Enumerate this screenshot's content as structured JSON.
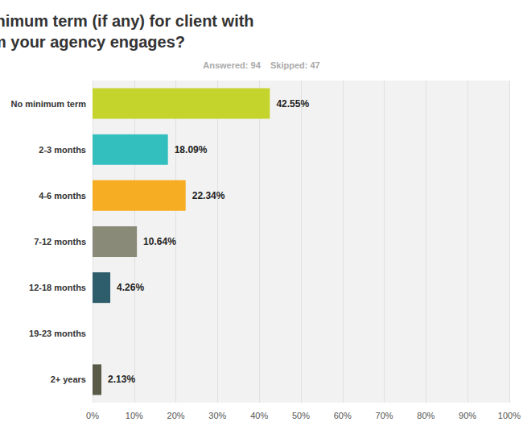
{
  "chart_data": {
    "type": "bar",
    "orientation": "horizontal",
    "title": "What is the minimum term (if any) for client with whom your agency engages?",
    "subtitle": "Answered: 94    Skipped: 47",
    "categories": [
      "No minimum term",
      "2-3 months",
      "4-6 months",
      "7-12 months",
      "12-18 months",
      "19-23 months",
      "2+ years"
    ],
    "values": [
      42.55,
      18.09,
      22.34,
      10.64,
      4.26,
      null,
      2.13
    ],
    "value_labels": [
      "42.55%",
      "18.09%",
      "22.34%",
      "10.64%",
      "4.26%",
      null,
      "2.13%"
    ],
    "colors": [
      "#c5d42c",
      "#34bfbf",
      "#f7ad23",
      "#8a8a78",
      "#2e5e6c",
      null,
      "#5a5a48"
    ],
    "data_labels": true,
    "xlim": [
      0,
      100
    ],
    "xticks": [
      {
        "value": 0,
        "label": "0%"
      },
      {
        "value": 10,
        "label": "10%"
      },
      {
        "value": 20,
        "label": "20%"
      },
      {
        "value": 30,
        "label": "30%"
      },
      {
        "value": 40,
        "label": "40%"
      },
      {
        "value": 50,
        "label": "50%"
      },
      {
        "value": 60,
        "label": "60%"
      },
      {
        "value": 70,
        "label": "70%"
      },
      {
        "value": 80,
        "label": "80%"
      },
      {
        "value": 90,
        "label": "90%"
      },
      {
        "value": 100,
        "label": "100%"
      }
    ],
    "grid": true
  }
}
